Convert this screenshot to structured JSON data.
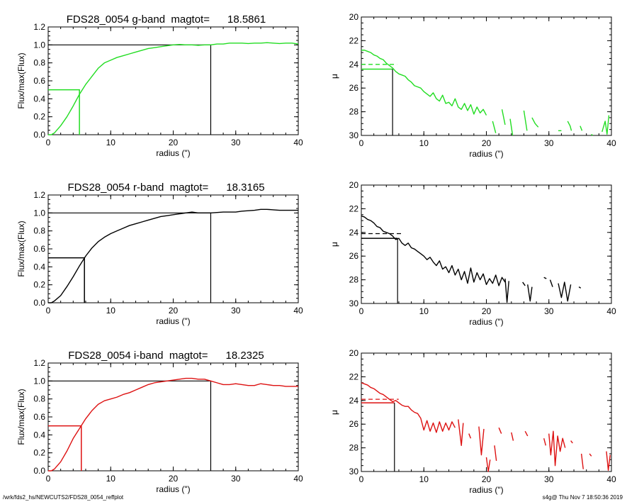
{
  "footer": {
    "left": "/wrk/fds2_hs/NEWCUTS2/FDS28_0054_reffplot",
    "right": "s4g@  Thu Nov  7 18:50:36 2019"
  },
  "colors": {
    "g": "#22dd22",
    "r": "#000000",
    "i": "#dd1111",
    "axis": "#000000"
  },
  "chart_data": [
    {
      "type": "line",
      "title": "FDS28_0054 g-band  magtot=      18.5861",
      "xlabel": "radius (\")",
      "ylabel": "Flux/max(Flux)",
      "xlim": [
        0,
        40
      ],
      "ylim": [
        0,
        1.2
      ],
      "xticks": [
        "0",
        "10",
        "20",
        "30",
        "40"
      ],
      "yticks": [
        "0.0",
        "0.2",
        "0.4",
        "0.6",
        "0.8",
        "1.0",
        "1.2"
      ],
      "color": "#22dd22",
      "series": [
        {
          "x": [
            0,
            0.5,
            1,
            2,
            3,
            4,
            5,
            6,
            7,
            8,
            9,
            10,
            11,
            12,
            13,
            14,
            15,
            16,
            17,
            18,
            19,
            20,
            21,
            22,
            23,
            24,
            25,
            26,
            27,
            28,
            29,
            30,
            31,
            32,
            33,
            34,
            35,
            36,
            37,
            38,
            39,
            40
          ],
          "y": [
            0.0,
            0.0,
            0.02,
            0.1,
            0.2,
            0.32,
            0.45,
            0.56,
            0.65,
            0.74,
            0.8,
            0.83,
            0.86,
            0.88,
            0.9,
            0.92,
            0.94,
            0.96,
            0.97,
            0.98,
            0.99,
            1.0,
            1.005,
            1.0,
            1.0,
            0.995,
            1.0,
            1.0,
            1.01,
            1.01,
            1.02,
            1.02,
            1.02,
            1.015,
            1.02,
            1.02,
            1.025,
            1.02,
            1.015,
            1.02,
            1.02,
            1.01
          ]
        }
      ],
      "half_light": {
        "r": 5.0,
        "f": 0.5
      },
      "total": {
        "r": 26.0,
        "f": 1.0
      }
    },
    {
      "type": "line",
      "xlabel": "radius (\")",
      "ylabel": "μ",
      "xlim": [
        0,
        40
      ],
      "ylim": [
        30,
        20
      ],
      "xticks": [
        "0",
        "10",
        "20",
        "30",
        "40"
      ],
      "yticks": [
        "20",
        "22",
        "24",
        "26",
        "28",
        "30"
      ],
      "color": "#22dd22",
      "series": [
        {
          "x": [
            0,
            0.5,
            1,
            1.5,
            2,
            2.5,
            3,
            3.5,
            4,
            4.5,
            5,
            5.5,
            6,
            6.5,
            7,
            7.5,
            8,
            8.5,
            9,
            9.5,
            10,
            10.5,
            11,
            11.5,
            12,
            12.5,
            13,
            13.5,
            14,
            14.5,
            15,
            15.5,
            16,
            16.5,
            17,
            17.5,
            18,
            18.5,
            19,
            19.5,
            20
          ],
          "y": [
            22.8,
            22.8,
            22.9,
            23.0,
            23.2,
            23.3,
            23.5,
            23.6,
            23.9,
            24.1,
            24.3,
            24.6,
            24.8,
            24.9,
            25.0,
            25.3,
            25.5,
            25.8,
            25.9,
            26.0,
            26.3,
            26.5,
            26.7,
            26.4,
            26.9,
            27.1,
            26.6,
            27.3,
            27.2,
            27.5,
            26.9,
            27.6,
            27.8,
            27.3,
            27.9,
            27.4,
            28.2,
            27.6,
            28.1,
            27.8,
            28.3
          ]
        },
        {
          "x": [
            21,
            21.5
          ],
          "y": [
            28.8,
            29.8
          ]
        },
        {
          "x": [
            22.5,
            23
          ],
          "y": [
            27.8,
            29.1
          ]
        },
        {
          "x": [
            23.8,
            24.2
          ],
          "y": [
            28.6,
            30.0
          ]
        },
        {
          "x": [
            26,
            26.5
          ],
          "y": [
            27.9,
            29.6
          ]
        },
        {
          "x": [
            27.3,
            27.8,
            28.3
          ],
          "y": [
            28.5,
            29.0,
            29.3
          ]
        },
        {
          "x": [
            31.5,
            32
          ],
          "y": [
            29.6,
            29.6
          ]
        },
        {
          "x": [
            33,
            33.4,
            33.6
          ],
          "y": [
            28.8,
            29.2,
            29.6
          ]
        },
        {
          "x": [
            35,
            35.3
          ],
          "y": [
            29.2,
            29.6
          ]
        },
        {
          "x": [
            36.8,
            37
          ],
          "y": [
            29.9,
            30.0
          ]
        },
        {
          "x": [
            38.5,
            39,
            39.3,
            39.6
          ],
          "y": [
            29.7,
            28.8,
            29.9,
            28.3
          ]
        }
      ],
      "mu_total": 24.0,
      "mu_half": 24.4,
      "r_half": 5.0
    },
    {
      "type": "line",
      "title": "FDS28_0054 r-band  magtot=      18.3165",
      "xlabel": "radius (\")",
      "ylabel": "Flux/max(Flux)",
      "xlim": [
        0,
        40
      ],
      "ylim": [
        0,
        1.2
      ],
      "xticks": [
        "0",
        "10",
        "20",
        "30",
        "40"
      ],
      "yticks": [
        "0.0",
        "0.2",
        "0.4",
        "0.6",
        "0.8",
        "1.0",
        "1.2"
      ],
      "color": "#000000",
      "series": [
        {
          "x": [
            0,
            0.5,
            1,
            2,
            3,
            4,
            5,
            6,
            7,
            8,
            9,
            10,
            11,
            12,
            13,
            14,
            15,
            16,
            17,
            18,
            19,
            20,
            21,
            22,
            23,
            24,
            25,
            26,
            27,
            28,
            29,
            30,
            31,
            32,
            33,
            34,
            35,
            36,
            37,
            38,
            39,
            40
          ],
          "y": [
            0.0,
            0.0,
            0.02,
            0.08,
            0.18,
            0.29,
            0.41,
            0.52,
            0.61,
            0.68,
            0.73,
            0.77,
            0.8,
            0.83,
            0.86,
            0.88,
            0.9,
            0.92,
            0.94,
            0.96,
            0.97,
            0.98,
            0.99,
            1.0,
            1.01,
            1.0,
            1.0,
            1.0,
            1.005,
            1.01,
            1.01,
            1.01,
            1.02,
            1.025,
            1.03,
            1.04,
            1.04,
            1.035,
            1.03,
            1.03,
            1.03,
            1.03
          ]
        }
      ],
      "half_light": {
        "r": 5.8,
        "f": 0.5
      },
      "total": {
        "r": 26.0,
        "f": 1.0
      }
    },
    {
      "type": "line",
      "xlabel": "radius (\")",
      "ylabel": "μ",
      "xlim": [
        0,
        40
      ],
      "ylim": [
        30,
        20
      ],
      "xticks": [
        "0",
        "10",
        "20",
        "30",
        "40"
      ],
      "yticks": [
        "20",
        "22",
        "24",
        "26",
        "28",
        "30"
      ],
      "color": "#000000",
      "series": [
        {
          "x": [
            0,
            0.5,
            1,
            1.5,
            2,
            2.5,
            3,
            3.5,
            4,
            4.5,
            5,
            5.5,
            6,
            6.5,
            7,
            7.5,
            8,
            8.5,
            9,
            9.5,
            10,
            10.5,
            11,
            11.5,
            12,
            12.5,
            13,
            13.5,
            14,
            14.5,
            15,
            15.5,
            16,
            16.5,
            17,
            17.5,
            18,
            18.5,
            19,
            19.5,
            20,
            20.5,
            21,
            21.5,
            22,
            22.5,
            23
          ],
          "y": [
            22.6,
            22.7,
            22.9,
            23.0,
            23.2,
            23.5,
            23.6,
            23.9,
            24.0,
            24.1,
            24.3,
            24.6,
            24.5,
            24.9,
            25.1,
            24.9,
            25.3,
            25.4,
            25.6,
            25.8,
            26.0,
            26.3,
            26.1,
            26.5,
            26.8,
            26.4,
            27.1,
            26.9,
            27.4,
            26.8,
            27.6,
            27.1,
            28.0,
            27.3,
            28.3,
            27.0,
            28.2,
            27.4,
            28.0,
            27.5,
            28.4,
            27.9,
            28.3,
            27.6,
            28.5,
            27.8,
            28.2
          ]
        },
        {
          "x": [
            23,
            23.3,
            23.6
          ],
          "y": [
            27.9,
            29.9,
            28.1
          ]
        },
        {
          "x": [
            25.8,
            26.2
          ],
          "y": [
            28.2,
            28.5
          ]
        },
        {
          "x": [
            26.6,
            27,
            27.3
          ],
          "y": [
            28.4,
            29.8,
            28.6
          ]
        },
        {
          "x": [
            29.2,
            29.6
          ],
          "y": [
            27.8,
            27.9
          ]
        },
        {
          "x": [
            30.2,
            30.6
          ],
          "y": [
            28.0,
            28.6
          ]
        },
        {
          "x": [
            31.5,
            32,
            32.5,
            33,
            33.5
          ],
          "y": [
            28.3,
            29.5,
            28.2,
            29.8,
            28.4
          ]
        },
        {
          "x": [
            34.8,
            35.1
          ],
          "y": [
            28.6,
            28.7
          ]
        }
      ],
      "mu_total": 24.1,
      "mu_half": 24.5,
      "r_half": 5.8
    },
    {
      "type": "line",
      "title": "FDS28_0054 i-band  magtot=      18.2325",
      "xlabel": "radius (\")",
      "ylabel": "Flux/max(Flux)",
      "xlim": [
        0,
        40
      ],
      "ylim": [
        0,
        1.2
      ],
      "xticks": [
        "0",
        "10",
        "20",
        "30",
        "40"
      ],
      "yticks": [
        "0.0",
        "0.2",
        "0.4",
        "0.6",
        "0.8",
        "1.0",
        "1.2"
      ],
      "color": "#dd1111",
      "series": [
        {
          "x": [
            0,
            0.5,
            1,
            2,
            3,
            4,
            5,
            6,
            7,
            8,
            9,
            10,
            11,
            12,
            13,
            14,
            15,
            16,
            17,
            18,
            19,
            20,
            21,
            22,
            23,
            24,
            25,
            26,
            27,
            28,
            29,
            30,
            31,
            32,
            33,
            34,
            35,
            36,
            37,
            38,
            39,
            40
          ],
          "y": [
            0.0,
            0.0,
            0.02,
            0.1,
            0.22,
            0.36,
            0.47,
            0.58,
            0.67,
            0.74,
            0.78,
            0.8,
            0.82,
            0.85,
            0.87,
            0.9,
            0.93,
            0.96,
            0.98,
            0.99,
            1.0,
            1.01,
            1.02,
            1.03,
            1.03,
            1.02,
            1.02,
            1.0,
            0.98,
            0.96,
            0.96,
            0.97,
            0.96,
            0.95,
            0.95,
            0.97,
            0.96,
            0.95,
            0.95,
            0.94,
            0.94,
            0.94
          ]
        }
      ],
      "half_light": {
        "r": 5.3,
        "f": 0.5
      },
      "total": {
        "r": 26.0,
        "f": 1.0
      }
    },
    {
      "type": "line",
      "xlabel": "radius (\")",
      "ylabel": "μ",
      "xlim": [
        0,
        40
      ],
      "ylim": [
        30,
        20
      ],
      "xticks": [
        "0",
        "10",
        "20",
        "30",
        "40"
      ],
      "yticks": [
        "20",
        "22",
        "24",
        "26",
        "28",
        "30"
      ],
      "color": "#dd1111",
      "series": [
        {
          "x": [
            0,
            0.5,
            1,
            1.5,
            2,
            2.5,
            3,
            3.5,
            4,
            4.5,
            5,
            5.5,
            6,
            6.5,
            7,
            7.5,
            8,
            8.5,
            9,
            9.5,
            10,
            10.5,
            11,
            11.5,
            12,
            12.5,
            13,
            13.5,
            14,
            14.5,
            15
          ],
          "y": [
            22.5,
            22.6,
            22.7,
            22.9,
            23.0,
            23.2,
            23.4,
            23.5,
            23.7,
            23.9,
            24.1,
            24.0,
            24.2,
            24.4,
            24.5,
            24.5,
            24.8,
            25.0,
            25.1,
            25.5,
            26.5,
            25.7,
            26.6,
            25.9,
            26.7,
            25.8,
            26.6,
            25.9,
            26.5,
            25.8,
            26.3
          ]
        },
        {
          "x": [
            15.5,
            16,
            16.3
          ],
          "y": [
            25.6,
            27.8,
            25.9
          ]
        },
        {
          "x": [
            17.2,
            17.5
          ],
          "y": [
            26.8,
            27.2
          ]
        },
        {
          "x": [
            18.8,
            19.2,
            19.6
          ],
          "y": [
            26.2,
            28.6,
            26.4
          ]
        },
        {
          "x": [
            20,
            20.3,
            20.6
          ],
          "y": [
            28.8,
            30.0,
            29.0
          ]
        },
        {
          "x": [
            21.3,
            21.6
          ],
          "y": [
            27.8,
            29.1
          ]
        },
        {
          "x": [
            22,
            22.4
          ],
          "y": [
            26.3,
            26.8
          ]
        },
        {
          "x": [
            24,
            24.3
          ],
          "y": [
            26.7,
            27.4
          ]
        },
        {
          "x": [
            26.2,
            26.6
          ],
          "y": [
            26.6,
            27.0
          ]
        },
        {
          "x": [
            29.2,
            29.5
          ],
          "y": [
            27.2,
            27.8
          ]
        },
        {
          "x": [
            30,
            30.3,
            30.7,
            31,
            31.4,
            31.8,
            32.2,
            32.6
          ],
          "y": [
            26.8,
            28.6,
            26.6,
            29.5,
            27.0,
            28.3,
            27.2,
            28.0
          ]
        },
        {
          "x": [
            33.5,
            33.8
          ],
          "y": [
            27.4,
            27.6
          ]
        },
        {
          "x": [
            35.2,
            35.5
          ],
          "y": [
            28.5,
            29.8
          ]
        },
        {
          "x": [
            36.5,
            36.8
          ],
          "y": [
            28.5,
            28.7
          ]
        },
        {
          "x": [
            39.2,
            39.5,
            39.8
          ],
          "y": [
            28.3,
            29.9,
            28.6
          ]
        }
      ],
      "mu_total": 23.9,
      "mu_half": 24.2,
      "r_half": 5.3
    }
  ]
}
